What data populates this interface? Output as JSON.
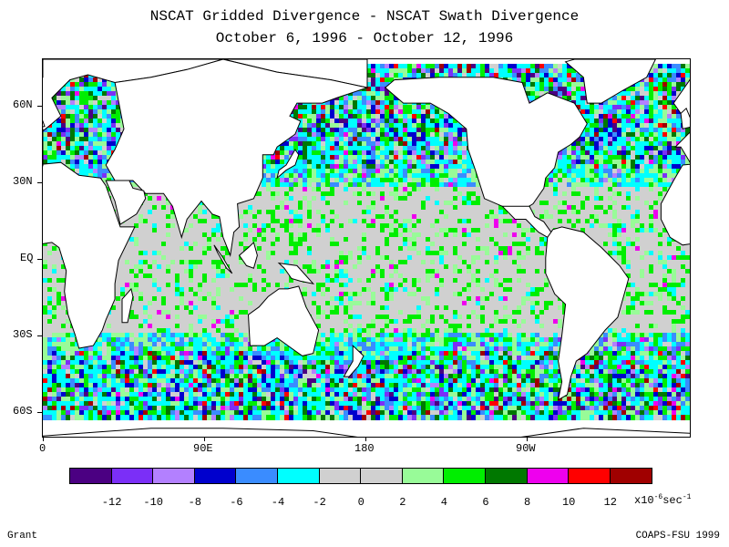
{
  "title": {
    "line1": "NSCAT Gridded Divergence - NSCAT Swath Divergence",
    "line2": "October 6, 1996 - October 12, 1996"
  },
  "map": {
    "lat_labels": [
      "60N",
      "30N",
      "EQ",
      "30S",
      "60S"
    ],
    "lon_labels": [
      "0",
      "90E",
      "180",
      "90W"
    ],
    "lon_range": [
      0,
      360
    ],
    "lat_range": [
      -70,
      77
    ]
  },
  "colorbar": {
    "colors": [
      "#4b0082",
      "#7b2ff7",
      "#b380ff",
      "#0000cd",
      "#3a8cff",
      "#00ffff",
      "#d0d0d0",
      "#d0d0d0",
      "#98fb98",
      "#00ee00",
      "#007800",
      "#ee00ee",
      "#ff0000",
      "#a00000"
    ],
    "tick_labels": [
      "-12",
      "-10",
      "-8",
      "-6",
      "-4",
      "-2",
      "0",
      "2",
      "4",
      "6",
      "8",
      "10",
      "12"
    ],
    "units_prefix": "x10",
    "units_exp": "-6",
    "units_suffix": "sec",
    "units_exp2": "-1"
  },
  "credits": {
    "left": "Grant",
    "right": "COAPS-FSU 1999"
  }
}
